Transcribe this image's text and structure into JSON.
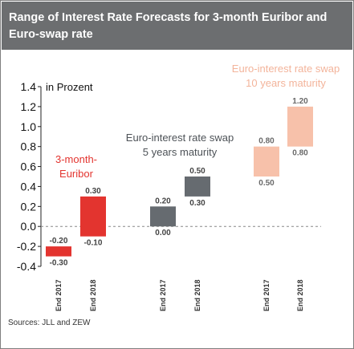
{
  "header": {
    "title": "Range of Interest Rate Forecasts for 3-month Euribor and Euro-swap rate"
  },
  "source": "Sources: JLL and ZEW",
  "colors": {
    "header_bg": "#6c6e70",
    "euribor": "#e3342f",
    "swap5": "#666b70",
    "swap10": "#f7c1aa",
    "euribor_label": "#e3342f",
    "swap5_label": "#4d5257",
    "swap10_label": "#f3b49b"
  },
  "chart_data": {
    "type": "bar",
    "subtype": "floating-range",
    "unit_label": "in Prozent",
    "ylim": [
      -0.4,
      1.4
    ],
    "yticks": [
      -0.4,
      -0.2,
      0.0,
      0.2,
      0.4,
      0.6,
      0.8,
      1.0,
      1.2,
      1.4
    ],
    "ytick_labels": [
      "-0.4",
      "-0.2",
      "0.0",
      "0.2",
      "0.4",
      "0.6",
      "0.8",
      "1.0",
      "1.2",
      "1.4"
    ],
    "baseline": 0.0,
    "grid": false,
    "groups": [
      {
        "label_lines": [
          "3-month-",
          "Euribor"
        ],
        "color_key": "euribor",
        "bars": [
          {
            "category": "End 2017",
            "low": -0.3,
            "high": -0.2,
            "low_label": "-0.30",
            "high_label": "-0.20"
          },
          {
            "category": "End 2018",
            "low": -0.1,
            "high": 0.3,
            "low_label": "-0.10",
            "high_label": "0.30"
          }
        ]
      },
      {
        "label_lines": [
          "Euro-interest rate swap",
          "5 years maturity"
        ],
        "color_key": "swap5",
        "bars": [
          {
            "category": "End 2017",
            "low": 0.0,
            "high": 0.2,
            "low_label": "0.00",
            "high_label": "0.20"
          },
          {
            "category": "End 2018",
            "low": 0.3,
            "high": 0.5,
            "low_label": "0.30",
            "high_label": "0.50"
          }
        ]
      },
      {
        "label_lines": [
          "Euro-interest rate swap",
          "10 years maturity"
        ],
        "color_key": "swap10",
        "bars": [
          {
            "category": "End 2017",
            "low": 0.5,
            "high": 0.8,
            "low_label": "0.50",
            "high_label": "0.80"
          },
          {
            "category": "End 2018",
            "low": 0.8,
            "high": 1.2,
            "low_label": "0.80",
            "high_label": "1.20"
          }
        ]
      }
    ]
  }
}
